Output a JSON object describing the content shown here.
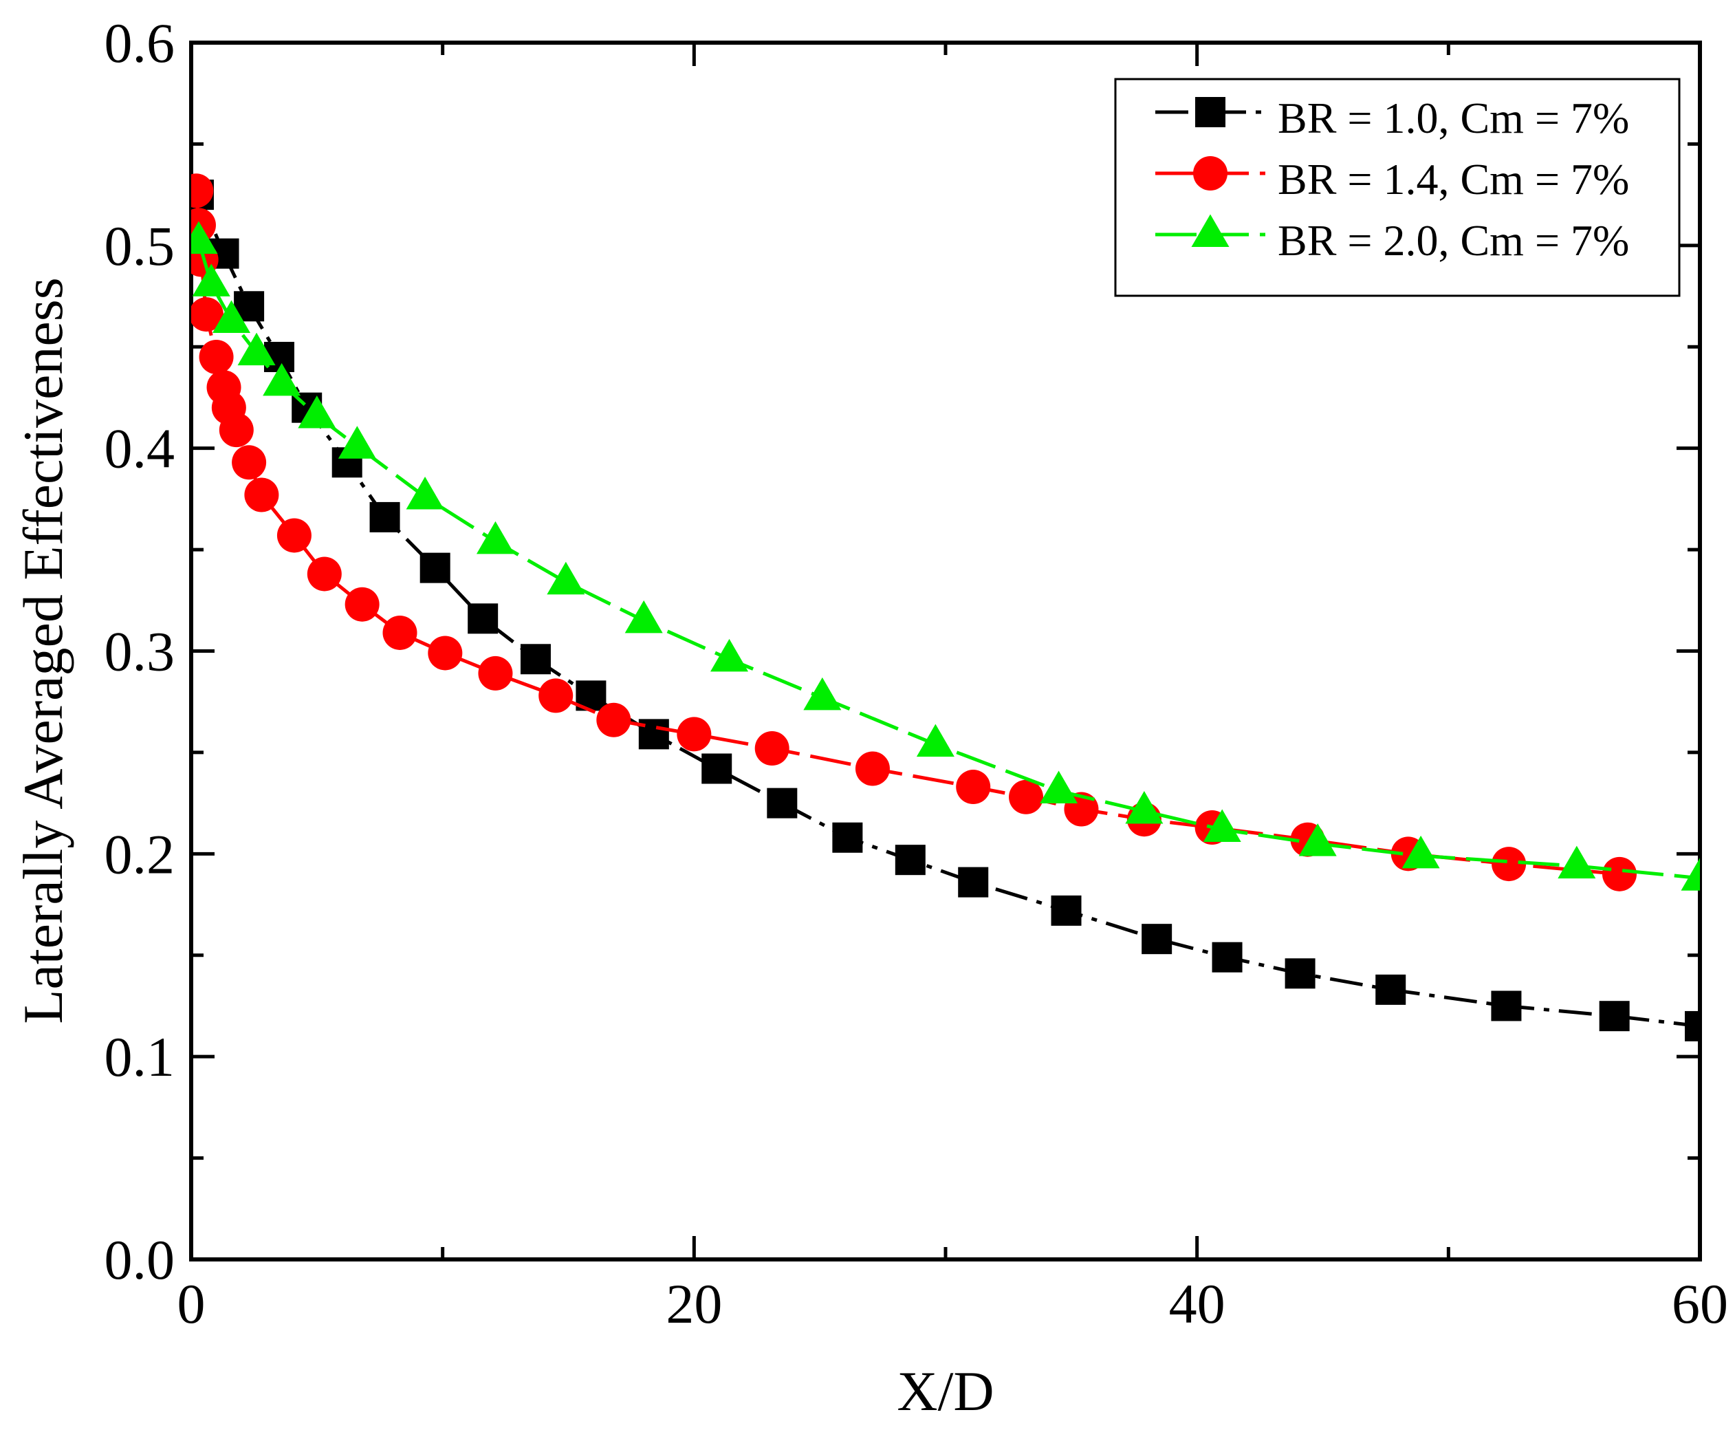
{
  "chart_data": {
    "type": "line",
    "title": "",
    "xlabel": "X/D",
    "ylabel": "Laterally Averaged Effectiveness",
    "xlim": [
      0,
      60
    ],
    "ylim": [
      0.0,
      0.6
    ],
    "x_ticks": [
      0,
      20,
      40,
      60
    ],
    "x_tick_labels": [
      "0",
      "20",
      "40",
      "60"
    ],
    "y_ticks": [
      0.0,
      0.1,
      0.2,
      0.3,
      0.4,
      0.5,
      0.6
    ],
    "y_tick_labels": [
      "0.0",
      "0.1",
      "0.2",
      "0.3",
      "0.4",
      "0.5",
      "0.6"
    ],
    "grid": false,
    "legend_position": "top-right",
    "series": [
      {
        "name": "BR = 1.0, Cm = 7%",
        "color": "#000000",
        "marker": "square",
        "dash": "long-dash-dot",
        "x": [
          0.3,
          1.3,
          2.3,
          3.5,
          4.6,
          6.2,
          7.7,
          9.7,
          11.6,
          13.7,
          15.9,
          18.4,
          20.9,
          23.5,
          26.1,
          28.6,
          31.1,
          34.8,
          38.4,
          41.2,
          44.1,
          47.7,
          52.3,
          56.6,
          60.0
        ],
        "y": [
          0.525,
          0.496,
          0.47,
          0.445,
          0.42,
          0.393,
          0.366,
          0.341,
          0.316,
          0.296,
          0.278,
          0.259,
          0.242,
          0.225,
          0.208,
          0.197,
          0.186,
          0.172,
          0.158,
          0.149,
          0.141,
          0.133,
          0.125,
          0.12,
          0.115
        ]
      },
      {
        "name": "BR = 1.4, Cm = 7%",
        "color": "#ff0000",
        "marker": "circle",
        "dash": "long-dash",
        "x": [
          0.2,
          0.3,
          0.4,
          0.6,
          1.0,
          1.3,
          1.5,
          1.8,
          2.3,
          2.8,
          4.1,
          5.3,
          6.8,
          8.3,
          10.1,
          12.1,
          14.5,
          16.8,
          20.0,
          23.1,
          27.1,
          31.1,
          33.2,
          35.4,
          37.9,
          40.6,
          44.4,
          48.4,
          52.4,
          56.8
        ],
        "y": [
          0.527,
          0.51,
          0.493,
          0.466,
          0.445,
          0.43,
          0.42,
          0.409,
          0.393,
          0.377,
          0.357,
          0.338,
          0.323,
          0.309,
          0.299,
          0.289,
          0.278,
          0.266,
          0.259,
          0.252,
          0.242,
          0.233,
          0.228,
          0.222,
          0.217,
          0.213,
          0.207,
          0.2,
          0.195,
          0.19
        ]
      },
      {
        "name": "BR = 2.0, Cm = 7%",
        "color": "#00ee00",
        "marker": "triangle",
        "dash": "long-dash",
        "x": [
          0.3,
          0.8,
          1.6,
          2.6,
          3.6,
          5.0,
          6.6,
          9.3,
          12.1,
          14.9,
          18.0,
          21.4,
          25.1,
          29.6,
          34.5,
          37.9,
          41.0,
          44.8,
          48.9,
          55.1,
          60.0
        ],
        "y": [
          0.502,
          0.481,
          0.463,
          0.447,
          0.432,
          0.416,
          0.401,
          0.376,
          0.354,
          0.334,
          0.315,
          0.296,
          0.277,
          0.254,
          0.231,
          0.221,
          0.212,
          0.205,
          0.199,
          0.194,
          0.188
        ]
      }
    ]
  }
}
